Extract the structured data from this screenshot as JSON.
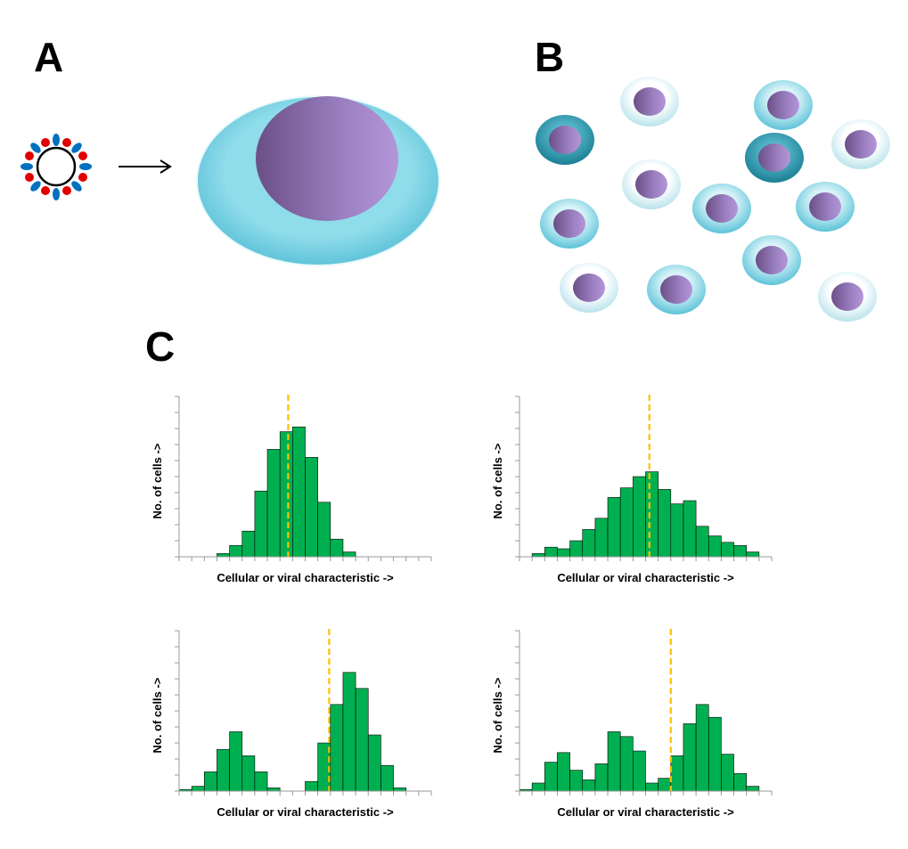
{
  "panels": {
    "a": "A",
    "b": "B",
    "c": "C"
  },
  "chart_data": [
    {
      "type": "histogram",
      "ylabel": "No. of cells ->",
      "xlabel": "Cellular or viral characteristic ->",
      "bins": [
        0,
        1,
        2,
        3,
        4,
        5,
        6,
        7,
        8,
        9,
        10,
        11,
        12,
        13,
        14,
        15,
        16,
        17,
        18,
        19,
        20
      ],
      "values": [
        0,
        0,
        0,
        0.2,
        0.7,
        1.6,
        4.1,
        6.7,
        7.8,
        8.1,
        6.2,
        3.4,
        1.1,
        0.3,
        0,
        0,
        0,
        0,
        0,
        0
      ],
      "xlim": [
        0,
        20
      ],
      "ylim": [
        0,
        10
      ],
      "xticks": [
        0,
        1,
        2,
        3,
        4,
        5,
        6,
        7,
        8,
        9,
        10,
        11,
        12,
        13,
        14,
        15,
        16,
        17,
        18,
        19,
        20
      ],
      "yticks": [
        0,
        1,
        2,
        3,
        4,
        5,
        6,
        7,
        8,
        9,
        10
      ],
      "color": "#00b050",
      "marker_x": 8.65,
      "marker_color": "#ffc000"
    },
    {
      "type": "histogram",
      "ylabel": "No. of cells ->",
      "xlabel": "Cellular or viral characteristic ->",
      "bins": [
        0,
        1,
        2,
        3,
        4,
        5,
        6,
        7,
        8,
        9,
        10,
        11,
        12,
        13,
        14,
        15,
        16,
        17,
        18,
        19,
        20
      ],
      "values": [
        0,
        0.2,
        0.6,
        0.5,
        1.0,
        1.7,
        2.4,
        3.7,
        4.3,
        5.0,
        5.3,
        4.2,
        3.3,
        3.5,
        1.9,
        1.3,
        0.9,
        0.7,
        0.3,
        0
      ],
      "xlim": [
        0,
        20
      ],
      "ylim": [
        0,
        10
      ],
      "xticks": [
        0,
        1,
        2,
        3,
        4,
        5,
        6,
        7,
        8,
        9,
        10,
        11,
        12,
        13,
        14,
        15,
        16,
        17,
        18,
        19,
        20
      ],
      "yticks": [
        0,
        1,
        2,
        3,
        4,
        5,
        6,
        7,
        8,
        9,
        10
      ],
      "color": "#00b050",
      "marker_x": 10.3,
      "marker_color": "#ffc000"
    },
    {
      "type": "histogram",
      "ylabel": "No. of cells ->",
      "xlabel": "Cellular or viral characteristic ->",
      "bins": [
        0,
        1,
        2,
        3,
        4,
        5,
        6,
        7,
        8,
        9,
        10,
        11,
        12,
        13,
        14,
        15,
        16,
        17,
        18,
        19,
        20
      ],
      "values": [
        0.1,
        0.3,
        1.2,
        2.6,
        3.7,
        2.2,
        1.2,
        0.2,
        0,
        0,
        0.6,
        3.0,
        5.4,
        7.4,
        6.4,
        3.5,
        1.6,
        0.2,
        0,
        0
      ],
      "xlim": [
        0,
        20
      ],
      "ylim": [
        0,
        10
      ],
      "xticks": [
        0,
        1,
        2,
        3,
        4,
        5,
        6,
        7,
        8,
        9,
        10,
        11,
        12,
        13,
        14,
        15,
        16,
        17,
        18,
        19,
        20
      ],
      "yticks": [
        0,
        1,
        2,
        3,
        4,
        5,
        6,
        7,
        8,
        9,
        10
      ],
      "color": "#00b050",
      "marker_x": 11.9,
      "marker_color": "#ffc000"
    },
    {
      "type": "histogram",
      "ylabel": "No. of cells ->",
      "xlabel": "Cellular or viral characteristic ->",
      "bins": [
        0,
        1,
        2,
        3,
        4,
        5,
        6,
        7,
        8,
        9,
        10,
        11,
        12,
        13,
        14,
        15,
        16,
        17,
        18,
        19,
        20
      ],
      "values": [
        0.1,
        0.5,
        1.8,
        2.4,
        1.3,
        0.7,
        1.7,
        3.7,
        3.4,
        2.5,
        0.5,
        0.8,
        2.2,
        4.2,
        5.4,
        4.6,
        2.3,
        1.1,
        0.3,
        0
      ],
      "xlim": [
        0,
        20
      ],
      "ylim": [
        0,
        10
      ],
      "xticks": [
        0,
        1,
        2,
        3,
        4,
        5,
        6,
        7,
        8,
        9,
        10,
        11,
        12,
        13,
        14,
        15,
        16,
        17,
        18,
        19,
        20
      ],
      "yticks": [
        0,
        1,
        2,
        3,
        4,
        5,
        6,
        7,
        8,
        9,
        10
      ],
      "color": "#00b050",
      "marker_x": 12.0,
      "marker_color": "#ffc000"
    }
  ]
}
